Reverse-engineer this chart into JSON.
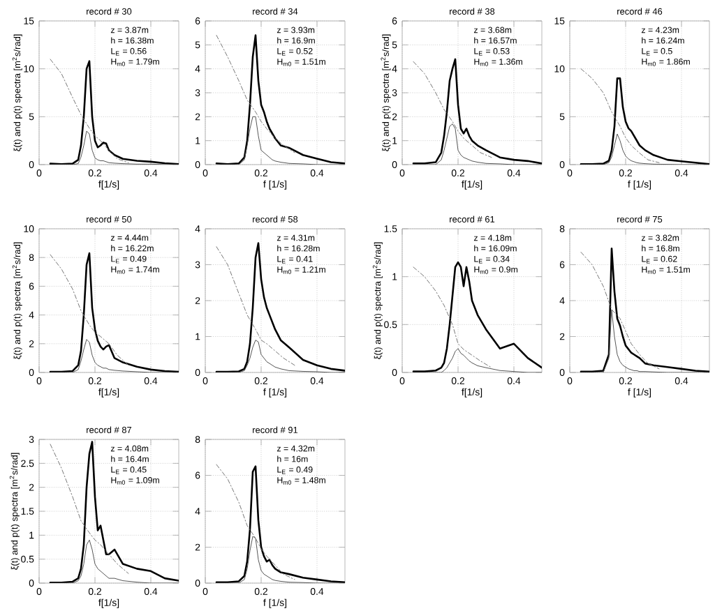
{
  "chart_data": [
    {
      "type": "line",
      "title": "record # 30",
      "xlabel": "f[1/s]",
      "ylabel": "ξ(t) and p(t) spectra  [m$^{2}$s/rad]",
      "x": [
        0.04,
        0.08,
        0.12,
        0.14,
        0.15,
        0.16,
        0.17,
        0.18,
        0.19,
        0.2,
        0.21,
        0.22,
        0.23,
        0.24,
        0.25,
        0.27,
        0.3,
        0.35,
        0.4,
        0.45,
        0.5
      ],
      "xlim": [
        0,
        0.5
      ],
      "ylim": [
        0,
        15
      ],
      "xticks": [
        0,
        0.2,
        0.4
      ],
      "yticks": [
        0,
        5,
        10,
        15
      ],
      "grid": true,
      "series": [
        {
          "color": "#000000",
          "line_style": "solid",
          "values": [
            0.1,
            0.05,
            0.1,
            0.5,
            2,
            5,
            10,
            10.8,
            5,
            2.5,
            1.8,
            2,
            2.3,
            2.2,
            1.5,
            1,
            0.6,
            0.4,
            0.3,
            0.15,
            0.05
          ]
        },
        {
          "color": "#555555",
          "line_style": "solid",
          "values": [
            0,
            0,
            0,
            0.1,
            0.8,
            2,
            3.5,
            3.2,
            1.5,
            0.7,
            0.5,
            0.4,
            0.4,
            0.3,
            0.2,
            0.15,
            0.1,
            0.05,
            0.05,
            0,
            0
          ]
        },
        {
          "color": "#777777",
          "line_style": "dashed",
          "x": [
            0.04,
            0.08,
            0.12,
            0.15,
            0.18,
            0.2,
            0.22,
            0.25,
            0.28,
            0.32
          ],
          "values": [
            11,
            9.5,
            7,
            5.2,
            3.8,
            3,
            2.5,
            1.5,
            0.6,
            0.2
          ]
        }
      ],
      "annotations": [
        "z = 3.87m",
        "h = 16.38m",
        "L$_{E}$ = 0.56",
        "H$_{m0}$ = 1.79m"
      ]
    },
    {
      "type": "line",
      "title": "record # 34",
      "xlabel": "f    [1/s]",
      "x": [
        0.04,
        0.08,
        0.12,
        0.14,
        0.15,
        0.16,
        0.17,
        0.18,
        0.19,
        0.2,
        0.21,
        0.22,
        0.23,
        0.24,
        0.25,
        0.27,
        0.3,
        0.35,
        0.4,
        0.45,
        0.5
      ],
      "xlim": [
        0,
        0.5
      ],
      "ylim": [
        0,
        6
      ],
      "xticks": [
        0,
        0.2,
        0.4
      ],
      "yticks": [
        0,
        1,
        2,
        3,
        4,
        5,
        6
      ],
      "grid": true,
      "series": [
        {
          "color": "#000000",
          "line_style": "solid",
          "values": [
            0.05,
            0.02,
            0.05,
            0.3,
            1,
            2.5,
            4.5,
            5.4,
            3.5,
            2.5,
            2.2,
            1.8,
            1.5,
            1.3,
            1.1,
            0.8,
            0.7,
            0.4,
            0.25,
            0.1,
            0.05
          ]
        },
        {
          "color": "#555555",
          "line_style": "solid",
          "values": [
            0,
            0,
            0,
            0.2,
            0.8,
            1.5,
            2,
            2,
            1.2,
            0.6,
            0.5,
            0.4,
            0.3,
            0.2,
            0.15,
            0.1,
            0.05,
            0.03,
            0,
            0,
            0
          ]
        },
        {
          "color": "#777777",
          "line_style": "dashed",
          "x": [
            0.04,
            0.08,
            0.12,
            0.15,
            0.18,
            0.2,
            0.22,
            0.25,
            0.28,
            0.32
          ],
          "values": [
            5.4,
            4.5,
            3.5,
            2.7,
            2.2,
            1.8,
            1.5,
            1.1,
            0.8,
            0.5
          ]
        }
      ],
      "annotations": [
        "z = 3.93m",
        "h = 16.9m",
        "L$_{E}$ = 0.52",
        "H$_{m0}$ = 1.51m"
      ]
    },
    {
      "type": "line",
      "title": "record # 38",
      "xlabel": "f[1/s]",
      "ylabel": "ξ(t) and p(t) spectra  [m$^{2}$s/rad]",
      "x": [
        0.04,
        0.08,
        0.12,
        0.14,
        0.15,
        0.16,
        0.17,
        0.18,
        0.19,
        0.2,
        0.21,
        0.22,
        0.23,
        0.24,
        0.25,
        0.27,
        0.3,
        0.35,
        0.4,
        0.45,
        0.5
      ],
      "xlim": [
        0,
        0.5
      ],
      "ylim": [
        0,
        6
      ],
      "xticks": [
        0,
        0.2,
        0.4
      ],
      "yticks": [
        0,
        1,
        2,
        3,
        4,
        5,
        6
      ],
      "grid": true,
      "series": [
        {
          "color": "#000000",
          "line_style": "solid",
          "values": [
            0.05,
            0.05,
            0.1,
            0.5,
            1.2,
            2.2,
            3.5,
            4,
            4.4,
            2.5,
            1.5,
            1.3,
            1.5,
            1.2,
            1,
            0.8,
            0.6,
            0.3,
            0.2,
            0.15,
            0.05
          ]
        },
        {
          "color": "#555555",
          "line_style": "solid",
          "values": [
            0,
            0,
            0,
            0.2,
            0.6,
            1.1,
            1.6,
            1.7,
            1.5,
            0.6,
            0.4,
            0.3,
            0.25,
            0.2,
            0.15,
            0.1,
            0.05,
            0.03,
            0,
            0,
            0
          ]
        },
        {
          "color": "#777777",
          "line_style": "dashed",
          "x": [
            0.04,
            0.08,
            0.12,
            0.15,
            0.18,
            0.2,
            0.22,
            0.25,
            0.28,
            0.32
          ],
          "values": [
            4.3,
            3.8,
            3,
            2.3,
            1.8,
            1.4,
            1.1,
            0.8,
            0.5,
            0.3
          ]
        }
      ],
      "annotations": [
        "z = 3.68m",
        "h = 16.57m",
        "L$_{E}$ = 0.53",
        "H$_{m0}$ = 1.36m"
      ]
    },
    {
      "type": "line",
      "title": "record # 46",
      "xlabel": "f    [1/s]",
      "x": [
        0.04,
        0.08,
        0.12,
        0.14,
        0.15,
        0.16,
        0.17,
        0.18,
        0.19,
        0.2,
        0.21,
        0.22,
        0.23,
        0.24,
        0.25,
        0.27,
        0.3,
        0.35,
        0.4,
        0.45,
        0.5
      ],
      "xlim": [
        0,
        0.5
      ],
      "ylim": [
        0,
        15
      ],
      "xticks": [
        0,
        0.2,
        0.4
      ],
      "yticks": [
        0,
        5,
        10,
        15
      ],
      "grid": true,
      "series": [
        {
          "color": "#000000",
          "line_style": "solid",
          "values": [
            0.05,
            0.05,
            0.1,
            0.4,
            1.5,
            4,
            9,
            9,
            6,
            4.5,
            3.8,
            3.5,
            3,
            2.5,
            2,
            1.5,
            1,
            0.5,
            0.35,
            0.2,
            0.05
          ]
        },
        {
          "color": "#555555",
          "line_style": "solid",
          "values": [
            0,
            0,
            0,
            0.2,
            0.8,
            2,
            3.2,
            2.5,
            1.5,
            0.9,
            0.6,
            0.4,
            0.3,
            0.2,
            0.15,
            0.1,
            0.05,
            0.03,
            0,
            0,
            0
          ]
        },
        {
          "color": "#777777",
          "line_style": "dashed",
          "x": [
            0.04,
            0.08,
            0.12,
            0.15,
            0.18,
            0.2,
            0.22,
            0.25,
            0.28,
            0.32
          ],
          "values": [
            10,
            9,
            7.5,
            5.5,
            4,
            2.8,
            2,
            1.2,
            0.5,
            0.2
          ]
        }
      ],
      "annotations": [
        "z = 4.23m",
        "h = 16.24m",
        "L$_{E}$ = 0.5",
        "H$_{m0}$ = 1.86m"
      ]
    },
    {
      "type": "line",
      "title": "record # 50",
      "xlabel": "f[1/s]",
      "ylabel": "ξ(t) and p(t) spectra  [m$^{2}$s/rad]",
      "x": [
        0.04,
        0.08,
        0.12,
        0.14,
        0.15,
        0.16,
        0.17,
        0.18,
        0.19,
        0.2,
        0.21,
        0.22,
        0.23,
        0.24,
        0.25,
        0.27,
        0.3,
        0.35,
        0.4,
        0.45,
        0.5
      ],
      "xlim": [
        0,
        0.5
      ],
      "ylim": [
        0,
        10
      ],
      "xticks": [
        0,
        0.2,
        0.4
      ],
      "yticks": [
        0,
        2,
        4,
        6,
        8,
        10
      ],
      "grid": true,
      "series": [
        {
          "color": "#000000",
          "line_style": "solid",
          "values": [
            0.05,
            0.05,
            0.1,
            0.5,
            1.5,
            4,
            7.5,
            8.3,
            4.5,
            3,
            2.2,
            1.8,
            1.6,
            1.8,
            1.9,
            1,
            0.7,
            0.4,
            0.2,
            0.1,
            0.05
          ]
        },
        {
          "color": "#555555",
          "line_style": "solid",
          "values": [
            0,
            0,
            0,
            0.2,
            0.8,
            1.6,
            2.3,
            2.1,
            1.2,
            0.7,
            0.5,
            0.4,
            0.3,
            0.3,
            0.2,
            0.15,
            0.1,
            0.05,
            0,
            0,
            0
          ]
        },
        {
          "color": "#777777",
          "line_style": "dashed",
          "x": [
            0.04,
            0.08,
            0.12,
            0.15,
            0.18,
            0.2,
            0.22,
            0.25,
            0.28,
            0.32
          ],
          "values": [
            8.2,
            7.2,
            5.8,
            4.3,
            3.3,
            2.8,
            2.5,
            2,
            1.2,
            0.5
          ]
        }
      ],
      "annotations": [
        "z = 4.44m",
        "h = 16.22m",
        "L$_{E}$ = 0.49",
        "H$_{m0}$ = 1.74m"
      ]
    },
    {
      "type": "line",
      "title": "record # 58",
      "xlabel": "f    [1/s]",
      "x": [
        0.04,
        0.08,
        0.12,
        0.14,
        0.15,
        0.16,
        0.17,
        0.18,
        0.19,
        0.2,
        0.21,
        0.22,
        0.23,
        0.24,
        0.25,
        0.27,
        0.3,
        0.35,
        0.4,
        0.45,
        0.5
      ],
      "xlim": [
        0,
        0.5
      ],
      "ylim": [
        0,
        4
      ],
      "xticks": [
        0,
        0.2,
        0.4
      ],
      "yticks": [
        0,
        1,
        2,
        3,
        4
      ],
      "grid": true,
      "series": [
        {
          "color": "#000000",
          "line_style": "solid",
          "values": [
            0.02,
            0.02,
            0.03,
            0.1,
            0.3,
            0.8,
            1.8,
            3.2,
            3.6,
            2.6,
            2.1,
            1.8,
            1.6,
            1.4,
            1.2,
            0.9,
            0.7,
            0.35,
            0.2,
            0.1,
            0.05
          ]
        },
        {
          "color": "#555555",
          "line_style": "solid",
          "values": [
            0,
            0,
            0,
            0.05,
            0.2,
            0.4,
            0.7,
            0.9,
            0.85,
            0.5,
            0.4,
            0.3,
            0.25,
            0.2,
            0.15,
            0.1,
            0.05,
            0.03,
            0.02,
            0,
            0
          ]
        },
        {
          "color": "#777777",
          "line_style": "dashed",
          "x": [
            0.04,
            0.08,
            0.12,
            0.15,
            0.18,
            0.2,
            0.22,
            0.25,
            0.28,
            0.32
          ],
          "values": [
            3.5,
            3,
            2.2,
            1.6,
            1.2,
            0.9,
            0.8,
            0.6,
            0.4,
            0.2
          ]
        }
      ],
      "annotations": [
        "z = 4.31m",
        "h = 16.28m",
        "L$_{E}$ = 0.41",
        "H$_{m0}$ = 1.21m"
      ]
    },
    {
      "type": "line",
      "title": "record # 61",
      "xlabel": "f[1/s]",
      "ylabel": "ξ(t) and p(t) spectra  [m$^{2}$s/rad]",
      "x": [
        0.04,
        0.08,
        0.12,
        0.14,
        0.15,
        0.16,
        0.17,
        0.18,
        0.19,
        0.2,
        0.21,
        0.22,
        0.23,
        0.24,
        0.25,
        0.27,
        0.3,
        0.35,
        0.4,
        0.45,
        0.5
      ],
      "xlim": [
        0,
        0.5
      ],
      "ylim": [
        0,
        1.5
      ],
      "xticks": [
        0,
        0.2,
        0.4
      ],
      "yticks": [
        0,
        0.5,
        1,
        1.5
      ],
      "grid": true,
      "series": [
        {
          "color": "#000000",
          "line_style": "solid",
          "values": [
            0.01,
            0.01,
            0.02,
            0.05,
            0.1,
            0.25,
            0.5,
            0.8,
            1.1,
            1.15,
            1.1,
            0.9,
            1.1,
            0.95,
            0.75,
            0.6,
            0.45,
            0.25,
            0.3,
            0.15,
            0.05
          ]
        },
        {
          "color": "#555555",
          "line_style": "solid",
          "values": [
            0,
            0,
            0,
            0,
            0.02,
            0.05,
            0.1,
            0.15,
            0.22,
            0.25,
            0.2,
            0.18,
            0.15,
            0.12,
            0.1,
            0.07,
            0.05,
            0.02,
            0.01,
            0,
            0
          ]
        },
        {
          "color": "#777777",
          "line_style": "dashed",
          "x": [
            0.04,
            0.08,
            0.12,
            0.15,
            0.18,
            0.2,
            0.22,
            0.25,
            0.28,
            0.32
          ],
          "values": [
            1.1,
            1,
            0.85,
            0.7,
            0.5,
            0.3,
            0.24,
            0.18,
            0.12,
            0.05
          ]
        }
      ],
      "annotations": [
        "z = 4.18m",
        "h = 16.09m",
        "L$_{E}$ = 0.34",
        "H$_{m0}$ = 0.9m"
      ]
    },
    {
      "type": "line",
      "title": "record # 75",
      "xlabel": "f    [1/s]",
      "x": [
        0.04,
        0.08,
        0.12,
        0.14,
        0.15,
        0.16,
        0.17,
        0.18,
        0.19,
        0.2,
        0.21,
        0.22,
        0.23,
        0.24,
        0.25,
        0.27,
        0.3,
        0.35,
        0.4,
        0.45,
        0.5
      ],
      "xlim": [
        0,
        0.5
      ],
      "ylim": [
        0,
        8
      ],
      "xticks": [
        0,
        0.2,
        0.4
      ],
      "yticks": [
        0,
        2,
        4,
        6,
        8
      ],
      "grid": true,
      "series": [
        {
          "color": "#000000",
          "line_style": "solid",
          "values": [
            0.05,
            0.05,
            0.1,
            1,
            6.9,
            4.5,
            3,
            2.6,
            2,
            1.5,
            1.3,
            1.1,
            1,
            0.9,
            0.8,
            0.5,
            0.4,
            0.3,
            0.2,
            0.1,
            0.05
          ]
        },
        {
          "color": "#555555",
          "line_style": "solid",
          "values": [
            0,
            0,
            0,
            0.8,
            3.5,
            2,
            1,
            0.6,
            0.4,
            0.3,
            0.2,
            0.15,
            0.1,
            0.1,
            0.05,
            0.05,
            0.03,
            0,
            0,
            0,
            0
          ]
        },
        {
          "color": "#777777",
          "line_style": "dashed",
          "x": [
            0.04,
            0.08,
            0.12,
            0.15,
            0.18,
            0.2,
            0.22,
            0.25,
            0.28,
            0.32
          ],
          "values": [
            6.7,
            6,
            4.8,
            3.5,
            3,
            2.3,
            1.6,
            1,
            0.5,
            0.2
          ]
        }
      ],
      "annotations": [
        "z = 3.82m",
        "h = 16.8m",
        "L$_{E}$ = 0.62",
        "H$_{m0}$ = 1.51m"
      ]
    },
    {
      "type": "line",
      "title": "record # 87",
      "xlabel": "f[1/s]",
      "ylabel": "ξ(t) and p(t) spectra  [m$^{2}$s/rad]",
      "x": [
        0.04,
        0.08,
        0.12,
        0.14,
        0.15,
        0.16,
        0.17,
        0.18,
        0.19,
        0.2,
        0.21,
        0.22,
        0.23,
        0.24,
        0.25,
        0.27,
        0.3,
        0.35,
        0.4,
        0.45,
        0.5
      ],
      "xlim": [
        0,
        0.5
      ],
      "ylim": [
        0,
        3
      ],
      "xticks": [
        0,
        0.2,
        0.4
      ],
      "yticks": [
        0,
        0.5,
        1,
        1.5,
        2,
        2.5,
        3
      ],
      "grid": true,
      "series": [
        {
          "color": "#000000",
          "line_style": "solid",
          "values": [
            0.01,
            0.01,
            0.03,
            0.1,
            0.3,
            0.8,
            2,
            2.7,
            2.95,
            1.8,
            1.1,
            1.2,
            0.9,
            0.6,
            0.6,
            0.7,
            0.4,
            0.3,
            0.25,
            0.1,
            0.05
          ]
        },
        {
          "color": "#555555",
          "line_style": "solid",
          "values": [
            0,
            0,
            0,
            0.05,
            0.15,
            0.4,
            0.8,
            0.9,
            0.7,
            0.4,
            0.3,
            0.25,
            0.2,
            0.15,
            0.1,
            0.1,
            0.05,
            0.02,
            0,
            0,
            0
          ]
        },
        {
          "color": "#777777",
          "line_style": "dashed",
          "x": [
            0.04,
            0.08,
            0.12,
            0.15,
            0.18,
            0.2,
            0.22,
            0.25,
            0.28,
            0.32
          ],
          "values": [
            2.9,
            2.4,
            1.8,
            1.3,
            1.05,
            0.9,
            0.8,
            0.6,
            0.4,
            0.2
          ]
        }
      ],
      "annotations": [
        "z = 4.08m",
        "h = 16.4m",
        "L$_{E}$ = 0.45",
        "H$_{m0}$ = 1.09m"
      ]
    },
    {
      "type": "line",
      "title": "record # 91",
      "xlabel": "f    [1/s]",
      "x": [
        0.04,
        0.08,
        0.12,
        0.14,
        0.15,
        0.16,
        0.17,
        0.18,
        0.19,
        0.2,
        0.21,
        0.22,
        0.23,
        0.24,
        0.25,
        0.27,
        0.3,
        0.35,
        0.4,
        0.45,
        0.5
      ],
      "xlim": [
        0,
        0.5
      ],
      "ylim": [
        0,
        8
      ],
      "xticks": [
        0,
        0.2,
        0.4
      ],
      "yticks": [
        0,
        2,
        4,
        6,
        8
      ],
      "grid": true,
      "series": [
        {
          "color": "#000000",
          "line_style": "solid",
          "values": [
            0.05,
            0.05,
            0.1,
            0.4,
            1.2,
            3,
            6.2,
            6.5,
            3.5,
            2,
            1.5,
            1.2,
            1.3,
            1,
            0.8,
            0.6,
            0.5,
            0.3,
            0.2,
            0.1,
            0.05
          ]
        },
        {
          "color": "#555555",
          "line_style": "solid",
          "values": [
            0,
            0,
            0,
            0.2,
            0.8,
            1.8,
            2.6,
            2.5,
            1.3,
            0.7,
            0.5,
            0.4,
            0.3,
            0.2,
            0.15,
            0.1,
            0.05,
            0.03,
            0,
            0,
            0
          ]
        },
        {
          "color": "#777777",
          "line_style": "dashed",
          "x": [
            0.04,
            0.08,
            0.12,
            0.15,
            0.18,
            0.2,
            0.22,
            0.25,
            0.28,
            0.32
          ],
          "values": [
            6.6,
            5.8,
            4.5,
            3.2,
            2.5,
            1.9,
            1.5,
            1,
            0.5,
            0.2
          ]
        }
      ],
      "annotations": [
        "z = 4.32m",
        "h = 16m",
        "L$_{E}$ = 0.49",
        "H$_{m0}$ = 1.48m"
      ]
    }
  ]
}
